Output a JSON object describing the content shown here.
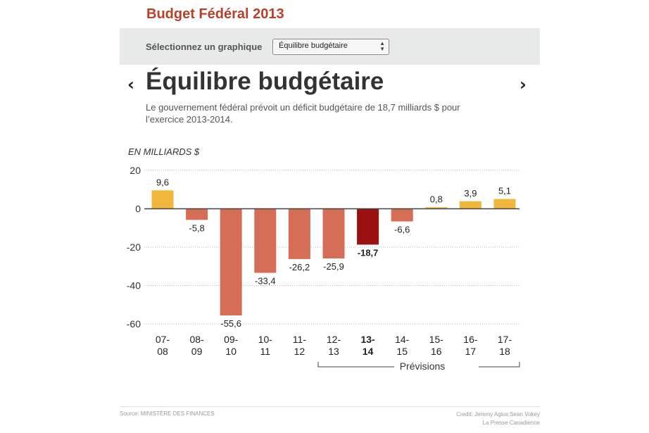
{
  "header": {
    "title": "Budget Fédéral 2013"
  },
  "selector": {
    "label": "Sélectionnez un graphique",
    "selected_value": "Équilibre budgétaire"
  },
  "nav": {
    "prev_icon": "chevron-left-icon",
    "next_icon": "chevron-right-icon",
    "prev_glyph": "‹",
    "next_glyph": "›"
  },
  "chart_title": "Équilibre budgétaire",
  "description": "Le gouvernement fédéral prévoit un déficit budgétaire de 18,7 milliards $ pour l’exercice 2013-2014.",
  "chart_data": {
    "type": "bar",
    "unit_label": "EN MILLIARDS $",
    "categories": [
      {
        "top": "07-",
        "bottom": "08"
      },
      {
        "top": "08-",
        "bottom": "09"
      },
      {
        "top": "09-",
        "bottom": "10"
      },
      {
        "top": "10-",
        "bottom": "11"
      },
      {
        "top": "11-",
        "bottom": "12"
      },
      {
        "top": "12-",
        "bottom": "13"
      },
      {
        "top": "13-",
        "bottom": "14"
      },
      {
        "top": "14-",
        "bottom": "15"
      },
      {
        "top": "15-",
        "bottom": "16"
      },
      {
        "top": "16-",
        "bottom": "17"
      },
      {
        "top": "17-",
        "bottom": "18"
      }
    ],
    "values": [
      9.6,
      -5.8,
      -55.6,
      -33.4,
      -26.2,
      -25.9,
      -18.7,
      -6.6,
      0.8,
      3.9,
      5.1
    ],
    "value_labels": [
      "9,6",
      "-5,8",
      "-55,6",
      "-33,4",
      "-26,2",
      "-25,9",
      "-18,7",
      "-6,6",
      "0,8",
      "3,9",
      "5,1"
    ],
    "highlight_index": 6,
    "ylim": [
      -60,
      20
    ],
    "yticks": [
      20,
      0,
      -20,
      -40,
      -60
    ],
    "ytick_labels": [
      "20",
      "0",
      "-20",
      "-40",
      "-60"
    ],
    "grid": true,
    "forecast_label": "Prévisions",
    "forecast_start_index": 5,
    "colors": {
      "surplus": "#f1b73d",
      "deficit": "#d66e57",
      "highlight": "#9b1010",
      "axis": "#444444",
      "grid": "#bbbbbb"
    }
  },
  "footer": {
    "source": "Source: MINISTÈRE DES FINANCES",
    "credit_line1": "Credit: Jeremy Agius;Sean Vokey",
    "credit_line2": "La Presse Canadienne"
  }
}
